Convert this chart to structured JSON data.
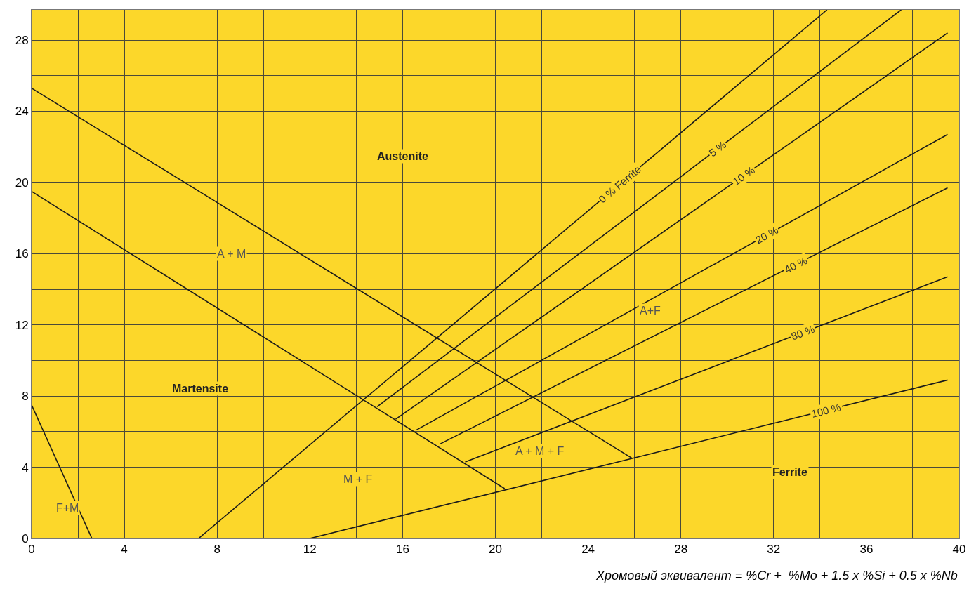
{
  "chart_data": {
    "type": "line",
    "xlabel": "Хромовый эквивалент = %Cr +  %Mo + 1.5 x %Si + 0.5 x %Nb",
    "xlim": [
      0,
      40
    ],
    "ylim": [
      0,
      29.7
    ],
    "xticks": [
      0,
      {
        "value": 2,
        "label": null
      },
      4,
      {
        "value": 6,
        "label": null
      },
      8,
      {
        "value": 10,
        "label": null
      },
      12,
      {
        "value": 14,
        "label": null
      },
      16,
      {
        "value": 18,
        "label": null
      },
      20,
      {
        "value": 22,
        "label": null
      },
      24,
      {
        "value": 26,
        "label": null
      },
      28,
      {
        "value": 30,
        "label": null
      },
      32,
      {
        "value": 34,
        "label": null
      },
      36,
      {
        "value": 38,
        "label": null
      },
      40
    ],
    "yticks": [
      0,
      {
        "value": 2,
        "label": null
      },
      4,
      {
        "value": 6,
        "label": null
      },
      8,
      {
        "value": 10,
        "label": null
      },
      12,
      {
        "value": 14,
        "label": null
      },
      16,
      {
        "value": 18,
        "label": null
      },
      20,
      {
        "value": 22,
        "label": null
      },
      24,
      {
        "value": 26,
        "label": null
      },
      28
    ],
    "grid": true,
    "marker": "none",
    "line_style": "solid",
    "series": [
      {
        "color": "#1a1a1a",
        "x": [
          0,
          2.6
        ],
        "values": [
          7.5,
          0
        ]
      },
      {
        "color": "#1a1a1a",
        "x": [
          0,
          20.4
        ],
        "values": [
          19.5,
          2.8
        ]
      },
      {
        "color": "#1a1a1a",
        "x": [
          0,
          25.9
        ],
        "values": [
          25.3,
          4.5
        ]
      },
      {
        "name": "0 % Ferrite",
        "color": "#1a1a1a",
        "x": [
          7.2,
          34.3
        ],
        "values": [
          0,
          29.7
        ]
      },
      {
        "name": "5 %",
        "color": "#1a1a1a",
        "x": [
          14.9,
          37.5
        ],
        "values": [
          7.4,
          29.7
        ]
      },
      {
        "name": "10 %",
        "color": "#1a1a1a",
        "x": [
          15.7,
          39.5
        ],
        "values": [
          6.7,
          28.4
        ]
      },
      {
        "name": "20 %",
        "color": "#1a1a1a",
        "x": [
          16.6,
          39.5
        ],
        "values": [
          6.1,
          22.7
        ]
      },
      {
        "name": "40 %",
        "color": "#1a1a1a",
        "x": [
          17.6,
          39.5
        ],
        "values": [
          5.3,
          19.7
        ]
      },
      {
        "name": "80 %",
        "color": "#1a1a1a",
        "x": [
          18.7,
          39.5
        ],
        "values": [
          4.3,
          14.7
        ]
      },
      {
        "name": "100 %",
        "color": "#1a1a1a",
        "x": [
          12,
          39.5
        ],
        "values": [
          0,
          8.9
        ]
      }
    ],
    "annotations": [
      "Austenite",
      "A + M",
      "Martensite",
      "F+M",
      "M + F",
      "A + M + F",
      "A+F",
      "Ferrite"
    ]
  }
}
